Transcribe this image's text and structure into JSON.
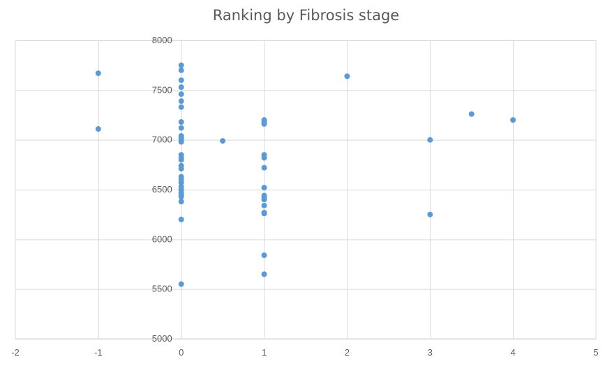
{
  "chart_data": {
    "type": "scatter",
    "title": "Ranking by Fibrosis stage",
    "xlabel": "",
    "ylabel": "",
    "xlim": [
      -2,
      5
    ],
    "ylim": [
      5000,
      8000
    ],
    "xticks": [
      -2,
      -1,
      0,
      1,
      2,
      3,
      4,
      5
    ],
    "yticks": [
      5000,
      5500,
      6000,
      6500,
      7000,
      7500,
      8000
    ],
    "grid": true,
    "legend": "none",
    "colors": {
      "marker": "#5b9bd5",
      "grid": "#d9d9d9",
      "text": "#595959"
    },
    "series": [
      {
        "points": [
          [
            -1,
            7670
          ],
          [
            -1,
            7110
          ],
          [
            0,
            7750
          ],
          [
            0,
            7700
          ],
          [
            0,
            7600
          ],
          [
            0,
            7530
          ],
          [
            0,
            7460
          ],
          [
            0,
            7390
          ],
          [
            0,
            7330
          ],
          [
            0,
            7180
          ],
          [
            0,
            7120
          ],
          [
            0,
            7040
          ],
          [
            0,
            7020
          ],
          [
            0,
            7000
          ],
          [
            0,
            6980
          ],
          [
            0,
            6850
          ],
          [
            0,
            6820
          ],
          [
            0,
            6800
          ],
          [
            0,
            6740
          ],
          [
            0,
            6710
          ],
          [
            0,
            6630
          ],
          [
            0,
            6600
          ],
          [
            0,
            6570
          ],
          [
            0,
            6530
          ],
          [
            0,
            6500
          ],
          [
            0,
            6470
          ],
          [
            0,
            6450
          ],
          [
            0,
            6430
          ],
          [
            0,
            6380
          ],
          [
            0,
            6200
          ],
          [
            0,
            5550
          ],
          [
            0.5,
            6990
          ],
          [
            1,
            7200
          ],
          [
            1,
            7180
          ],
          [
            1,
            7160
          ],
          [
            1,
            6850
          ],
          [
            1,
            6820
          ],
          [
            1,
            6720
          ],
          [
            1,
            6520
          ],
          [
            1,
            6440
          ],
          [
            1,
            6420
          ],
          [
            1,
            6400
          ],
          [
            1,
            6340
          ],
          [
            1,
            6270
          ],
          [
            1,
            6260
          ],
          [
            1,
            5840
          ],
          [
            1,
            5650
          ],
          [
            2,
            7640
          ],
          [
            3,
            7000
          ],
          [
            3,
            6250
          ],
          [
            3.5,
            7260
          ],
          [
            4,
            7200
          ]
        ]
      }
    ]
  }
}
